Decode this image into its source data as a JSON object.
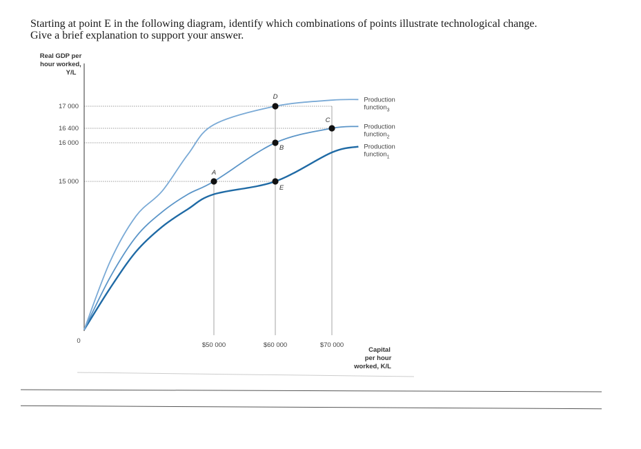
{
  "question": {
    "line1": "Starting at point E in the following diagram, identify which combinations of points illustrate technological change.",
    "line2": "Give a brief explanation to support your answer."
  },
  "colors": {
    "pf1": "#1f6aa5",
    "pf2": "#5b95c8",
    "pf3": "#7aaad6",
    "guide": "#9a9a9a",
    "axis": "#555555",
    "point": "#111111"
  },
  "chart_data": {
    "type": "line",
    "title": "",
    "ylabel": [
      "Real GDP per",
      "hour worked,",
      "Y/L"
    ],
    "xlabel": [
      "Capital",
      "per hour",
      "worked, K/L"
    ],
    "origin_label": "0",
    "xlim": [
      0,
      80000
    ],
    "ylim": [
      0,
      18000
    ],
    "x_ticks": [
      {
        "value": 50000,
        "label": "$50 000"
      },
      {
        "value": 60000,
        "label": "$60 000"
      },
      {
        "value": 70000,
        "label": "$70 000"
      }
    ],
    "y_ticks": [
      {
        "value": 15000,
        "label": "15 000"
      },
      {
        "value": 16000,
        "label": "16 000"
      },
      {
        "value": 16400,
        "label": "16 400"
      },
      {
        "value": 17000,
        "label": "17 000"
      }
    ],
    "series": [
      {
        "name": [
          "Production",
          "function",
          "1"
        ],
        "color_key": "pf1",
        "x": [
          0,
          10000,
          20000,
          30000,
          40000,
          50000,
          60000,
          70000,
          76000
        ],
        "y": [
          0,
          4200,
          7900,
          10400,
          12200,
          13700,
          15000,
          15750,
          15900
        ]
      },
      {
        "name": [
          "Production",
          "function",
          "2"
        ],
        "color_key": "pf2",
        "x": [
          0,
          10000,
          20000,
          30000,
          40000,
          50000,
          60000,
          70000,
          76000
        ],
        "y": [
          0,
          5300,
          9400,
          11900,
          13700,
          15000,
          16000,
          16400,
          16450
        ]
      },
      {
        "name": [
          "Production",
          "function",
          "3"
        ],
        "color_key": "pf3",
        "x": [
          0,
          10000,
          20000,
          30000,
          40000,
          50000,
          60000,
          70000,
          76000
        ],
        "y": [
          0,
          6900,
          11500,
          14000,
          15700,
          16500,
          17000,
          17200,
          17220
        ]
      }
    ],
    "points": [
      {
        "label": "A",
        "x": 50000,
        "y": 15000,
        "guide_to": 15000
      },
      {
        "label": "B",
        "x": 60000,
        "y": 16000,
        "guide_to": 16000
      },
      {
        "label": "C",
        "x": 70000,
        "y": 16400,
        "guide_to": 16400
      },
      {
        "label": "D",
        "x": 60000,
        "y": 17000,
        "guide_to": 17000
      },
      {
        "label": "E",
        "x": 60000,
        "y": 15000,
        "guide_to": 15000
      }
    ]
  }
}
